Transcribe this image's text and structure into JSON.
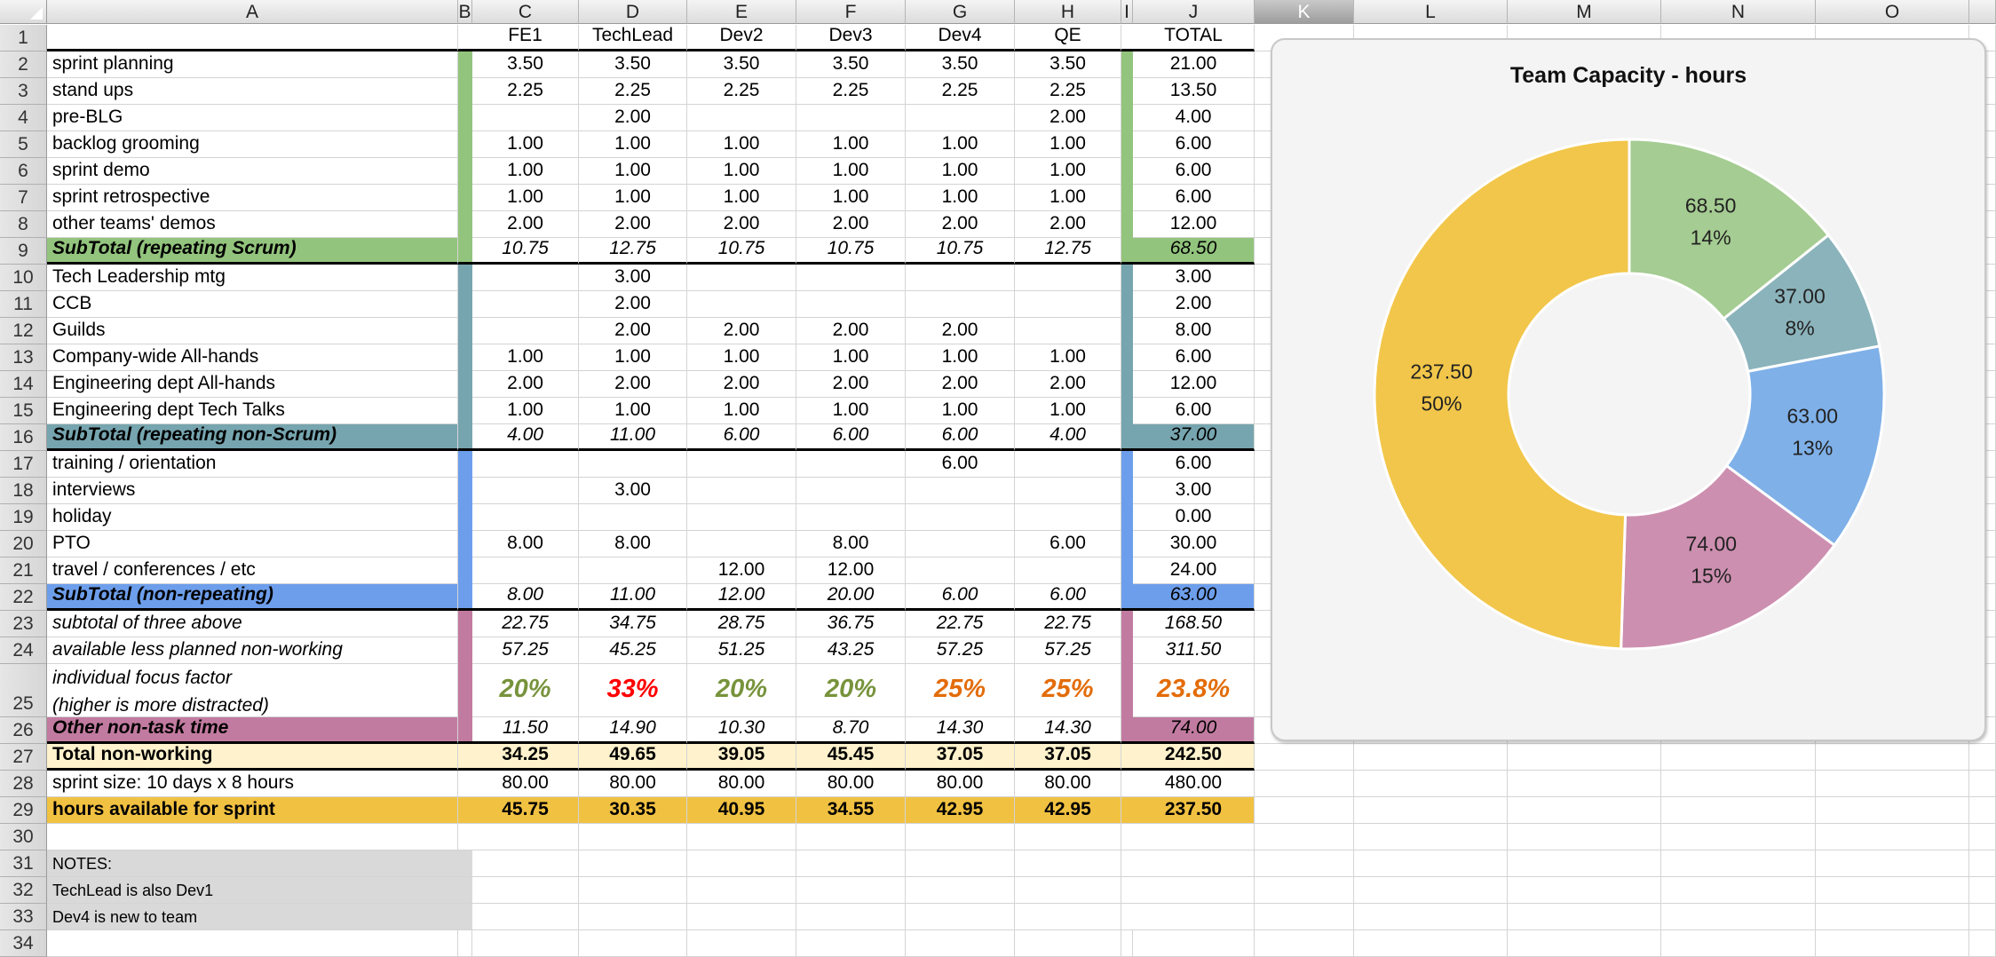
{
  "columns": [
    "A",
    "B",
    "C",
    "D",
    "E",
    "F",
    "G",
    "H",
    "I",
    "J",
    "K",
    "L",
    "M",
    "N",
    "O"
  ],
  "selected_column": "K",
  "header_row": {
    "people": [
      "FE1",
      "TechLead",
      "Dev2",
      "Dev3",
      "Dev4",
      "QE"
    ],
    "total": "TOTAL"
  },
  "group_colors": {
    "scrum": "#93c47d",
    "nonscrum": "#76a5af",
    "nonrepeating": "#6d9eeb",
    "other": "#c27ba0",
    "total_nonworking": "#fff2cc",
    "available": "#f1c142",
    "notes": "#d9d9d9"
  },
  "rows": [
    {
      "label": "sprint planning",
      "group": "scrum",
      "values": [
        "3.50",
        "3.50",
        "3.50",
        "3.50",
        "3.50",
        "3.50"
      ],
      "total": "21.00"
    },
    {
      "label": "stand ups",
      "group": "scrum",
      "values": [
        "2.25",
        "2.25",
        "2.25",
        "2.25",
        "2.25",
        "2.25"
      ],
      "total": "13.50"
    },
    {
      "label": "pre-BLG",
      "group": "scrum",
      "values": [
        "",
        "2.00",
        "",
        "",
        "",
        "2.00"
      ],
      "total": "4.00"
    },
    {
      "label": "backlog grooming",
      "group": "scrum",
      "values": [
        "1.00",
        "1.00",
        "1.00",
        "1.00",
        "1.00",
        "1.00"
      ],
      "total": "6.00"
    },
    {
      "label": "sprint demo",
      "group": "scrum",
      "values": [
        "1.00",
        "1.00",
        "1.00",
        "1.00",
        "1.00",
        "1.00"
      ],
      "total": "6.00"
    },
    {
      "label": "sprint retrospective",
      "group": "scrum",
      "values": [
        "1.00",
        "1.00",
        "1.00",
        "1.00",
        "1.00",
        "1.00"
      ],
      "total": "6.00"
    },
    {
      "label": "other teams' demos",
      "group": "scrum",
      "values": [
        "2.00",
        "2.00",
        "2.00",
        "2.00",
        "2.00",
        "2.00"
      ],
      "total": "12.00"
    },
    {
      "label": "SubTotal (repeating Scrum)",
      "group": "scrum",
      "subtotal": true,
      "values": [
        "10.75",
        "12.75",
        "10.75",
        "10.75",
        "10.75",
        "12.75"
      ],
      "total": "68.50"
    },
    {
      "label": "Tech Leadership mtg",
      "group": "nonscrum",
      "values": [
        "",
        "3.00",
        "",
        "",
        "",
        ""
      ],
      "total": "3.00"
    },
    {
      "label": "CCB",
      "group": "nonscrum",
      "values": [
        "",
        "2.00",
        "",
        "",
        "",
        ""
      ],
      "total": "2.00"
    },
    {
      "label": "Guilds",
      "group": "nonscrum",
      "values": [
        "",
        "2.00",
        "2.00",
        "2.00",
        "2.00",
        ""
      ],
      "total": "8.00"
    },
    {
      "label": "Company-wide All-hands",
      "group": "nonscrum",
      "values": [
        "1.00",
        "1.00",
        "1.00",
        "1.00",
        "1.00",
        "1.00"
      ],
      "total": "6.00"
    },
    {
      "label": "Engineering dept All-hands",
      "group": "nonscrum",
      "values": [
        "2.00",
        "2.00",
        "2.00",
        "2.00",
        "2.00",
        "2.00"
      ],
      "total": "12.00"
    },
    {
      "label": "Engineering dept Tech Talks",
      "group": "nonscrum",
      "values": [
        "1.00",
        "1.00",
        "1.00",
        "1.00",
        "1.00",
        "1.00"
      ],
      "total": "6.00"
    },
    {
      "label": "SubTotal (repeating non-Scrum)",
      "group": "nonscrum",
      "subtotal": true,
      "values": [
        "4.00",
        "11.00",
        "6.00",
        "6.00",
        "6.00",
        "4.00"
      ],
      "total": "37.00"
    },
    {
      "label": "training / orientation",
      "group": "nonrepeating",
      "values": [
        "",
        "",
        "",
        "",
        "6.00",
        ""
      ],
      "total": "6.00"
    },
    {
      "label": "interviews",
      "group": "nonrepeating",
      "values": [
        "",
        "3.00",
        "",
        "",
        "",
        ""
      ],
      "total": "3.00"
    },
    {
      "label": "holiday",
      "group": "nonrepeating",
      "values": [
        "",
        "",
        "",
        "",
        "",
        ""
      ],
      "total": "0.00"
    },
    {
      "label": "PTO",
      "group": "nonrepeating",
      "values": [
        "8.00",
        "8.00",
        "",
        "8.00",
        "",
        "6.00"
      ],
      "total": "30.00"
    },
    {
      "label": "travel / conferences / etc",
      "group": "nonrepeating",
      "values": [
        "",
        "",
        "12.00",
        "12.00",
        "",
        ""
      ],
      "total": "24.00"
    },
    {
      "label": "SubTotal (non-repeating)",
      "group": "nonrepeating",
      "subtotal": true,
      "values": [
        "8.00",
        "11.00",
        "12.00",
        "20.00",
        "6.00",
        "6.00"
      ],
      "total": "63.00"
    },
    {
      "label": "subtotal of three above",
      "group": "other",
      "italic": true,
      "values": [
        "22.75",
        "34.75",
        "28.75",
        "36.75",
        "22.75",
        "22.75"
      ],
      "total": "168.50"
    },
    {
      "label": "available less planned non-working",
      "group": "other",
      "italic": true,
      "values": [
        "57.25",
        "45.25",
        "51.25",
        "43.25",
        "57.25",
        "57.25"
      ],
      "total": "311.50"
    },
    {
      "label": "individual focus factor",
      "label2": "(higher is more distracted)",
      "group": "other",
      "italic": true,
      "focus": true,
      "values": [
        "20%",
        "33%",
        "20%",
        "20%",
        "25%",
        "25%"
      ],
      "total": "23.8%",
      "value_colors": [
        "#77933c",
        "#ff0000",
        "#77933c",
        "#77933c",
        "#e36c09",
        "#e36c09"
      ],
      "total_color": "#e36c09"
    },
    {
      "label": "Other non-task time",
      "group": "other",
      "subtotal": true,
      "has_comment": true,
      "values": [
        "11.50",
        "14.90",
        "10.30",
        "8.70",
        "14.30",
        "14.30"
      ],
      "total": "74.00"
    },
    {
      "label": "Total non-working",
      "group": "total_nonworking",
      "bold": true,
      "values": [
        "34.25",
        "49.65",
        "39.05",
        "45.45",
        "37.05",
        "37.05"
      ],
      "total": "242.50"
    },
    {
      "label": "sprint size: 10 days x 8 hours",
      "group": "plain",
      "values": [
        "80.00",
        "80.00",
        "80.00",
        "80.00",
        "80.00",
        "80.00"
      ],
      "total": "480.00"
    },
    {
      "label": "hours available for sprint",
      "group": "available",
      "bold": true,
      "values": [
        "45.75",
        "30.35",
        "40.95",
        "34.55",
        "42.95",
        "42.95"
      ],
      "total": "237.50"
    },
    {
      "label": "",
      "group": "blank",
      "values": [
        "",
        "",
        "",
        "",
        "",
        ""
      ],
      "total": ""
    },
    {
      "label": "NOTES:",
      "group": "notes",
      "values": [
        "",
        "",
        "",
        "",
        "",
        ""
      ],
      "total": ""
    },
    {
      "label": "TechLead is also Dev1",
      "group": "notes",
      "values": [
        "",
        "",
        "",
        "",
        "",
        ""
      ],
      "total": ""
    },
    {
      "label": "Dev4 is new to team",
      "group": "notes",
      "values": [
        "",
        "",
        "",
        "",
        "",
        ""
      ],
      "total": ""
    }
  ],
  "chart_data": {
    "type": "pie",
    "donut": true,
    "title": "Team Capacity - hours",
    "categories": [
      "SubTotal (repeating Scrum)",
      "SubTotal (repeating non-Scrum)",
      "SubTotal (non-repeating)",
      "Other non-task time",
      "hours available for sprint"
    ],
    "values": [
      68.5,
      37.0,
      63.0,
      74.0,
      237.5
    ],
    "value_labels": [
      "68.50",
      "37.00",
      "63.00",
      "74.00",
      "237.50"
    ],
    "percent_labels": [
      "14%",
      "8%",
      "13%",
      "15%",
      "50%"
    ],
    "colors": [
      "#a5cc92",
      "#8bb3bb",
      "#7fb0e8",
      "#cd8fb0",
      "#f2c64a"
    ],
    "legend": "none"
  }
}
